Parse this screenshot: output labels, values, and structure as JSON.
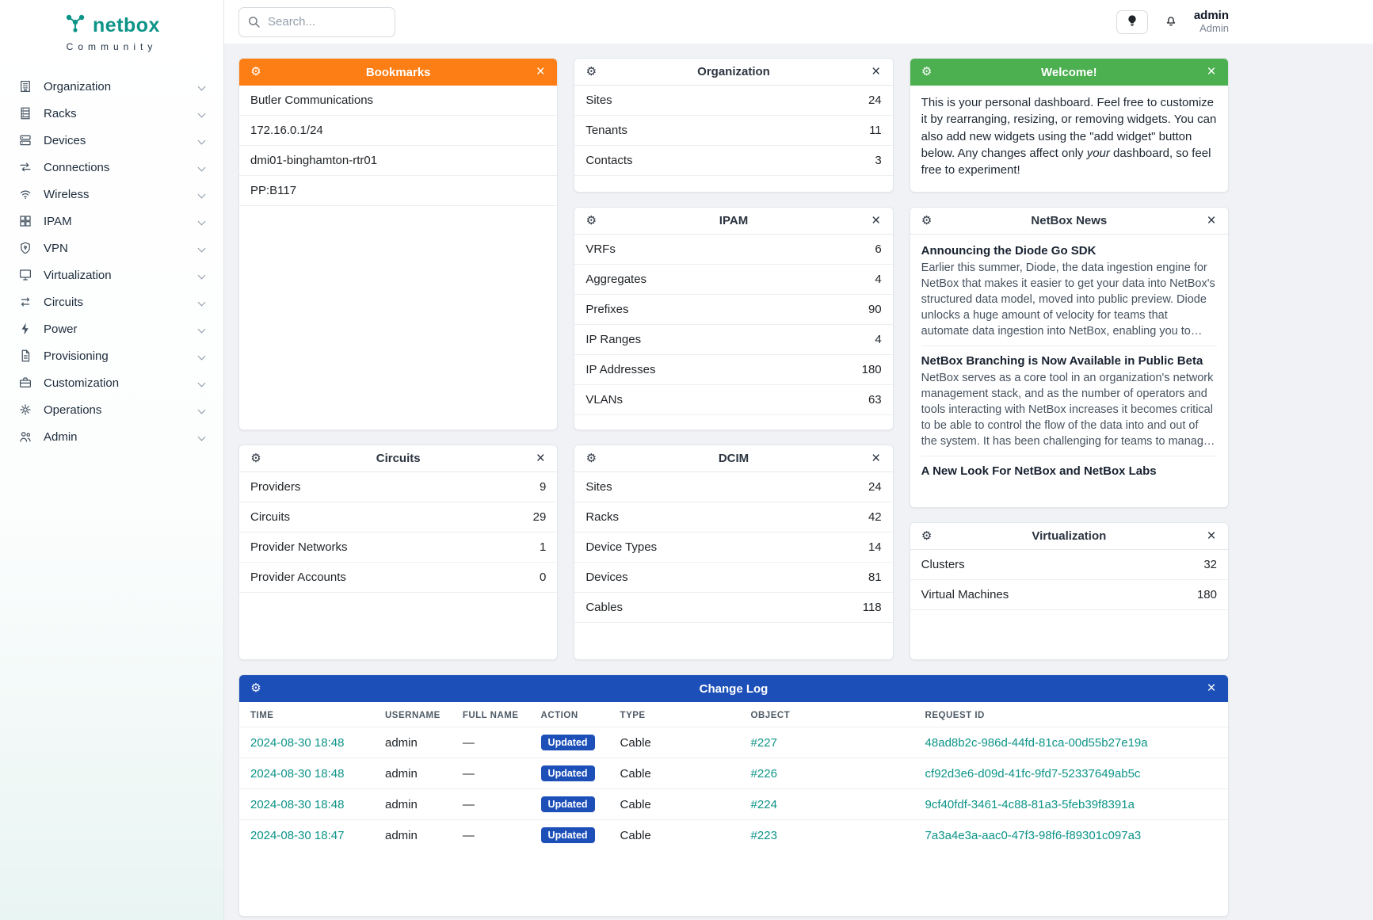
{
  "brand": {
    "name": "netbox",
    "tagline": "Community"
  },
  "topbar": {
    "search_placeholder": "Search...",
    "username": "admin",
    "role": "Admin"
  },
  "colors": {
    "orange": "#fd7e14",
    "green": "#4caf50",
    "blue": "#1d4fb8",
    "teal": "#0d9488"
  },
  "sidebar": [
    {
      "label": "Organization",
      "icon": "organization"
    },
    {
      "label": "Racks",
      "icon": "racks"
    },
    {
      "label": "Devices",
      "icon": "devices"
    },
    {
      "label": "Connections",
      "icon": "connections"
    },
    {
      "label": "Wireless",
      "icon": "wireless"
    },
    {
      "label": "IPAM",
      "icon": "ipam"
    },
    {
      "label": "VPN",
      "icon": "vpn"
    },
    {
      "label": "Virtualization",
      "icon": "virtualization"
    },
    {
      "label": "Circuits",
      "icon": "circuits"
    },
    {
      "label": "Power",
      "icon": "power"
    },
    {
      "label": "Provisioning",
      "icon": "provisioning"
    },
    {
      "label": "Customization",
      "icon": "customization"
    },
    {
      "label": "Operations",
      "icon": "operations"
    },
    {
      "label": "Admin",
      "icon": "admin"
    }
  ],
  "widgets": {
    "bookmarks": {
      "title": "Bookmarks",
      "items": [
        "Butler Communications",
        "172.16.0.1/24",
        "dmi01-binghamton-rtr01",
        "PP:B117"
      ]
    },
    "organization": {
      "title": "Organization",
      "rows": [
        {
          "label": "Sites",
          "value": "24"
        },
        {
          "label": "Tenants",
          "value": "11"
        },
        {
          "label": "Contacts",
          "value": "3"
        }
      ]
    },
    "welcome": {
      "title": "Welcome!",
      "body_1": "This is your personal dashboard. Feel free to customize it by rearranging, resizing, or removing widgets. You can also add new widgets using the \"add widget\" button below. Any changes affect only ",
      "body_italic": "your",
      "body_2": " dashboard, so feel free to experiment!"
    },
    "ipam": {
      "title": "IPAM",
      "rows": [
        {
          "label": "VRFs",
          "value": "6"
        },
        {
          "label": "Aggregates",
          "value": "4"
        },
        {
          "label": "Prefixes",
          "value": "90"
        },
        {
          "label": "IP Ranges",
          "value": "4"
        },
        {
          "label": "IP Addresses",
          "value": "180"
        },
        {
          "label": "VLANs",
          "value": "63"
        }
      ]
    },
    "news": {
      "title": "NetBox News",
      "items": [
        {
          "headline": "Announcing the Diode Go SDK",
          "excerpt": "Earlier this summer, Diode, the data ingestion engine for NetBox that makes it easier to get your data into NetBox's structured data model, moved into public preview. Diode unlocks a huge amount of velocity for teams that automate data ingestion into NetBox, enabling you to push data in without worrying too much about order of..."
        },
        {
          "headline": "NetBox Branching is Now Available in Public Beta",
          "excerpt": "NetBox serves as a core tool in an organization's network management stack, and as the number of operators and tools interacting with NetBox increases it becomes critical to be able to control the flow of the data into and out of the system. It has been challenging for teams to manage all this change in..."
        },
        {
          "headline": "A New Look For NetBox and NetBox Labs",
          "excerpt": ""
        }
      ]
    },
    "circuits": {
      "title": "Circuits",
      "rows": [
        {
          "label": "Providers",
          "value": "9"
        },
        {
          "label": "Circuits",
          "value": "29"
        },
        {
          "label": "Provider Networks",
          "value": "1"
        },
        {
          "label": "Provider Accounts",
          "value": "0"
        }
      ]
    },
    "dcim": {
      "title": "DCIM",
      "rows": [
        {
          "label": "Sites",
          "value": "24"
        },
        {
          "label": "Racks",
          "value": "42"
        },
        {
          "label": "Device Types",
          "value": "14"
        },
        {
          "label": "Devices",
          "value": "81"
        },
        {
          "label": "Cables",
          "value": "118"
        }
      ]
    },
    "virtualization": {
      "title": "Virtualization",
      "rows": [
        {
          "label": "Clusters",
          "value": "32"
        },
        {
          "label": "Virtual Machines",
          "value": "180"
        }
      ]
    },
    "changelog": {
      "title": "Change Log",
      "columns": [
        "TIME",
        "USERNAME",
        "FULL NAME",
        "ACTION",
        "TYPE",
        "OBJECT",
        "REQUEST ID"
      ],
      "rows": [
        {
          "time": "2024-08-30 18:48",
          "username": "admin",
          "full_name": "—",
          "action": "Updated",
          "type": "Cable",
          "object": "#227",
          "request_id": "48ad8b2c-986d-44fd-81ca-00d55b27e19a"
        },
        {
          "time": "2024-08-30 18:48",
          "username": "admin",
          "full_name": "—",
          "action": "Updated",
          "type": "Cable",
          "object": "#226",
          "request_id": "cf92d3e6-d09d-41fc-9fd7-52337649ab5c"
        },
        {
          "time": "2024-08-30 18:48",
          "username": "admin",
          "full_name": "—",
          "action": "Updated",
          "type": "Cable",
          "object": "#224",
          "request_id": "9cf40fdf-3461-4c88-81a3-5feb39f8391a"
        },
        {
          "time": "2024-08-30 18:47",
          "username": "admin",
          "full_name": "—",
          "action": "Updated",
          "type": "Cable",
          "object": "#223",
          "request_id": "7a3a4e3a-aac0-47f3-98f6-f89301c097a3"
        }
      ]
    }
  }
}
